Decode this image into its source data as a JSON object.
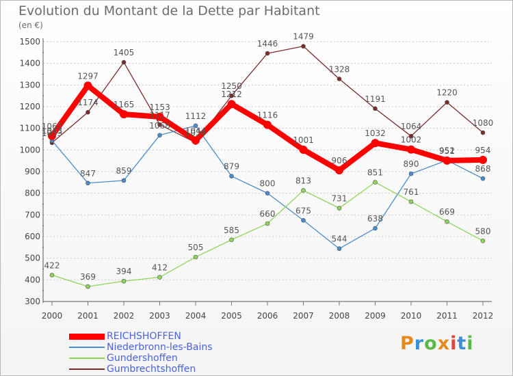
{
  "title": "Evolution du Montant de la Dette par Habitant",
  "subtitle": "(en €)",
  "logo": {
    "text": "Proxiti",
    "colors": [
      "#e8891e",
      "#3a8fd6",
      "#5ab84a",
      "#e8891e",
      "#d94a3a",
      "#3a8fd6",
      "#5ab84a"
    ]
  },
  "chart_data": {
    "type": "line",
    "title": "Evolution du Montant de la Dette par Habitant",
    "subtitle": "(en €)",
    "x": [
      "2000",
      "2001",
      "2002",
      "2003",
      "2004",
      "2005",
      "2006",
      "2007",
      "2008",
      "2009",
      "2010",
      "2011",
      "2012"
    ],
    "ylim": [
      300,
      1500
    ],
    "yticks": [
      "300",
      "400",
      "500",
      "600",
      "700",
      "800",
      "900",
      "1000",
      "1100",
      "1200",
      "1300",
      "1400",
      "1500"
    ],
    "grid": "dashed horizontal",
    "legend_position": "bottom-left",
    "series": [
      {
        "name": "Gumbrechtshoffen",
        "color": "#7a2a2a",
        "values": [
          1033,
          1174,
          1405,
          1117,
          1034,
          1250,
          1446,
          1479,
          1328,
          1191,
          1064,
          1220,
          1080
        ],
        "labels": [
          "1033",
          "1174",
          "1405",
          "1117",
          "1034",
          "1250",
          "1446",
          "1479",
          "1328",
          "1191",
          "1064",
          "1220",
          "1080"
        ]
      },
      {
        "name": "Niederbronn-les-Bains",
        "color": "#4a8cc9",
        "values": [
          1043,
          847,
          859,
          1068,
          1112,
          879,
          800,
          675,
          544,
          638,
          890,
          952,
          868
        ],
        "labels": [
          "1043",
          "847",
          "859",
          "1068",
          "1112",
          "879",
          "800",
          "675",
          "544",
          "638",
          "890",
          "952",
          "868"
        ]
      },
      {
        "name": "Gundershoffen",
        "color": "#8fd45a",
        "values": [
          422,
          369,
          394,
          412,
          505,
          585,
          660,
          813,
          731,
          851,
          761,
          669,
          580
        ],
        "labels": [
          "422",
          "369",
          "394",
          "412",
          "505",
          "585",
          "660",
          "813",
          "731",
          "851",
          "761",
          "669",
          "580"
        ]
      },
      {
        "name": "REICHSHOFFEN",
        "color": "#ff0000",
        "values": [
          1065,
          1297,
          1165,
          1153,
          1044,
          1212,
          1116,
          1001,
          906,
          1032,
          1002,
          951,
          954
        ],
        "labels": [
          "1065",
          "1297",
          "1165",
          "1153",
          "1044",
          "1212",
          "1116",
          "1001",
          "906",
          "1032",
          "1002",
          "951",
          "954"
        ]
      }
    ],
    "legend": [
      {
        "name": "REICHSHOFFEN",
        "color": "#ff0000",
        "thick": true
      },
      {
        "name": "Niederbronn-les-Bains",
        "color": "#4a8cc9"
      },
      {
        "name": "Gundershoffen",
        "color": "#8fd45a"
      },
      {
        "name": "Gumbrechtshoffen",
        "color": "#7a2a2a"
      }
    ]
  }
}
